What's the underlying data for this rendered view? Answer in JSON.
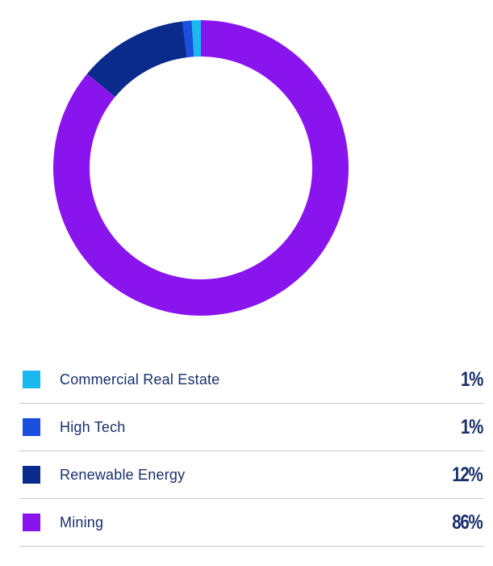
{
  "chart_data": {
    "type": "pie",
    "variant": "donut",
    "categories": [
      "Commercial Real Estate",
      "High Tech",
      "Renewable Energy",
      "Mining"
    ],
    "values": [
      1,
      1,
      12,
      86
    ],
    "value_labels": [
      "1%",
      "1%",
      "12%",
      "86%"
    ],
    "colors": [
      "#1bb8ef",
      "#1a4fe0",
      "#0a2a8c",
      "#8a14ee"
    ],
    "legend_placement": "bottom"
  }
}
